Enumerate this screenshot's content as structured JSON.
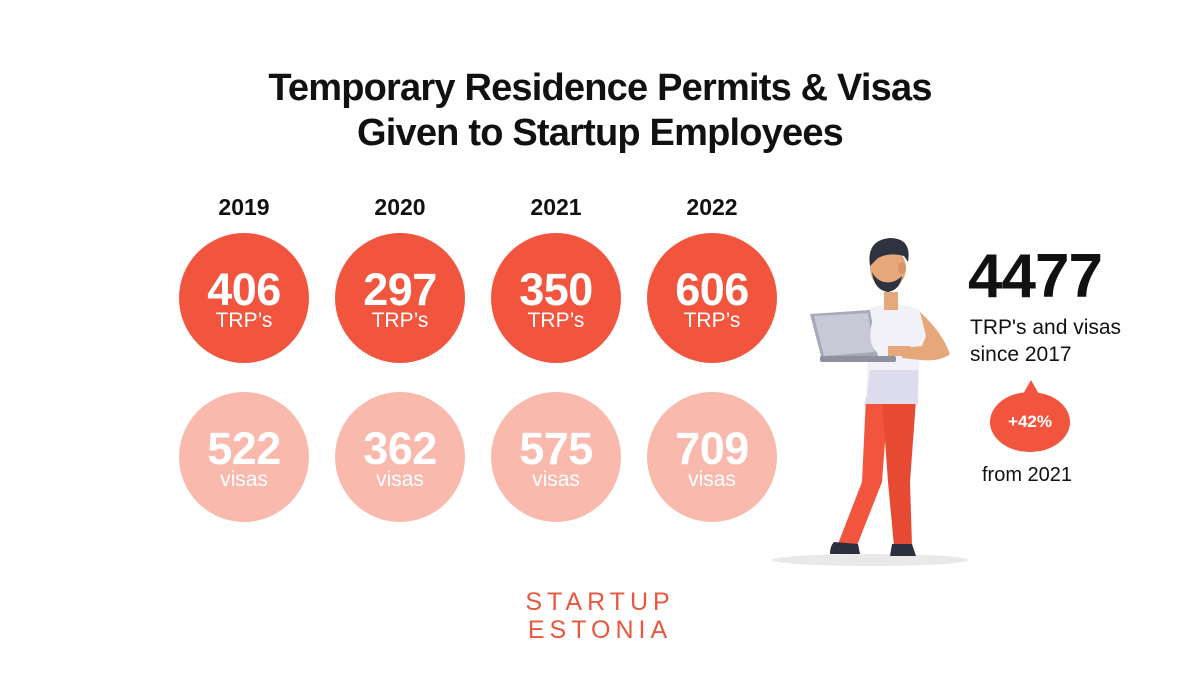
{
  "title": {
    "line1": "Temporary Residence Permits & Visas",
    "line2": "Given to Startup Employees"
  },
  "colors": {
    "trp_circle": "#f1553d",
    "visa_circle": "#f9b9ad",
    "logo": "#e8583e",
    "text": "#111111"
  },
  "years": [
    {
      "year": "2019",
      "trp": "406",
      "trp_label": "TRP’s",
      "visas": "522",
      "visas_label": "visas"
    },
    {
      "year": "2020",
      "trp": "297",
      "trp_label": "TRP’s",
      "visas": "362",
      "visas_label": "visas"
    },
    {
      "year": "2021",
      "trp": "350",
      "trp_label": "TRP’s",
      "visas": "575",
      "visas_label": "visas"
    },
    {
      "year": "2022",
      "trp": "606",
      "trp_label": "TRP’s",
      "visas": "709",
      "visas_label": "visas"
    }
  ],
  "summary": {
    "total": "4477",
    "label_line1": "TRP's and visas",
    "label_line2": "since 2017",
    "growth": "+42%",
    "growth_from": "from 2021"
  },
  "illustration": {
    "icon": "person-with-laptop-icon"
  },
  "logo": {
    "line1": "STARTUP",
    "line2": "ESTONIA"
  }
}
